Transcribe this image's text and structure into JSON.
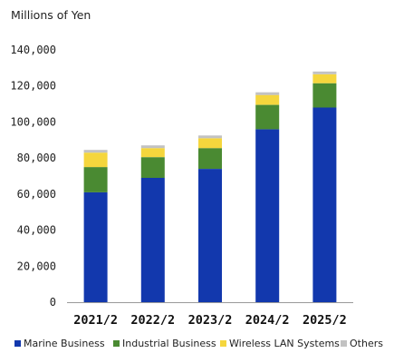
{
  "chart_data": {
    "type": "bar",
    "stacked": true,
    "unit_label": "Millions of Yen",
    "categories": [
      "2021/2",
      "2022/2",
      "2023/2",
      "2024/2",
      "2025/2"
    ],
    "series": [
      {
        "name": "Marine Business",
        "color": "#1238ad",
        "values": [
          61000,
          69000,
          74000,
          96000,
          108000
        ]
      },
      {
        "name": "Industrial Business",
        "color": "#4a8a32",
        "values": [
          14000,
          11500,
          11500,
          13500,
          13500
        ]
      },
      {
        "name": "Wireless LAN Systems",
        "color": "#f5d63d",
        "values": [
          8000,
          5000,
          5500,
          5500,
          5000
        ]
      },
      {
        "name": "Others",
        "color": "#c2c2c2",
        "values": [
          1500,
          1500,
          1500,
          1500,
          1500
        ]
      }
    ],
    "ylim": [
      0,
      140000
    ],
    "yticks": [
      0,
      20000,
      40000,
      60000,
      80000,
      100000,
      120000,
      140000
    ],
    "ytick_labels": [
      "0",
      "20,000",
      "40,000",
      "60,000",
      "80,000",
      "100,000",
      "120,000",
      "140,000"
    ],
    "grid": false,
    "legend_position": "bottom"
  }
}
